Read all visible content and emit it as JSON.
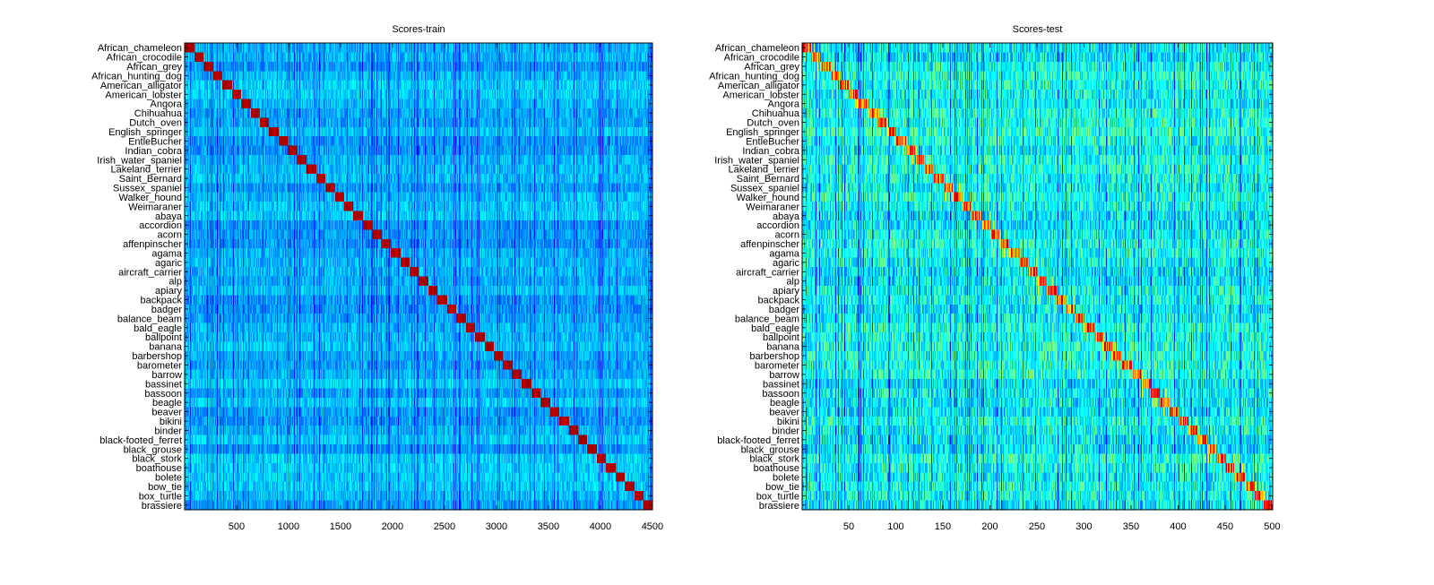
{
  "chart_data": [
    {
      "type": "heatmap",
      "title": "Scores-train",
      "xlabel": "",
      "ylabel": "",
      "xlim": [
        1,
        4500
      ],
      "x_ticks": [
        500,
        1000,
        1500,
        2000,
        2500,
        3000,
        3500,
        4000,
        4500
      ],
      "colormap": "jet",
      "pattern": "Each class has 90 training samples; score is maximal (red) for the sample's own class, producing a clean diagonal of red blocks; other scores are low (cyan/blue).",
      "columns_per_class": 90,
      "rows": [
        "African_chameleon",
        "African_crocodile",
        "African_grey",
        "African_hunting_dog",
        "American_alligator",
        "American_lobster",
        "Angora",
        "Chihuahua",
        "Dutch_oven",
        "English_springer",
        "EntleBucher",
        "Indian_cobra",
        "Irish_water_spaniel",
        "Lakeland_terrier",
        "Saint_Bernard",
        "Sussex_spaniel",
        "Walker_hound",
        "Weimaraner",
        "abaya",
        "accordion",
        "acorn",
        "affenpinscher",
        "agama",
        "agaric",
        "aircraft_carrier",
        "alp",
        "apiary",
        "backpack",
        "badger",
        "balance_beam",
        "bald_eagle",
        "ballpoint",
        "banana",
        "barbershop",
        "barometer",
        "barrow",
        "bassinet",
        "bassoon",
        "beagle",
        "beaver",
        "bikini",
        "binder",
        "black-footed_ferret",
        "black_grouse",
        "black_stork",
        "boathouse",
        "bolete",
        "bow_tie",
        "box_turtle",
        "brassiere"
      ]
    },
    {
      "type": "heatmap",
      "title": "Scores-test",
      "xlabel": "",
      "ylabel": "",
      "xlim": [
        1,
        500
      ],
      "x_ticks": [
        50,
        100,
        150,
        200,
        250,
        300,
        350,
        400,
        450,
        500
      ],
      "colormap": "jet",
      "pattern": "Each class has 10 test samples; a noisier diagonal with yellow/orange/red peaks near each class's own columns; off-diagonal scores are mostly cyan/green.",
      "columns_per_class": 10,
      "rows": [
        "African_chameleon",
        "African_crocodile",
        "African_grey",
        "African_hunting_dog",
        "American_alligator",
        "American_lobster",
        "Angora",
        "Chihuahua",
        "Dutch_oven",
        "English_springer",
        "EntleBucher",
        "Indian_cobra",
        "Irish_water_spaniel",
        "Lakeland_terrier",
        "Saint_Bernard",
        "Sussex_spaniel",
        "Walker_hound",
        "Weimaraner",
        "abaya",
        "accordion",
        "acorn",
        "affenpinscher",
        "agama",
        "agaric",
        "aircraft_carrier",
        "alp",
        "apiary",
        "backpack",
        "badger",
        "balance_beam",
        "bald_eagle",
        "ballpoint",
        "banana",
        "barbershop",
        "barometer",
        "barrow",
        "bassinet",
        "bassoon",
        "beagle",
        "beaver",
        "bikini",
        "binder",
        "black-footed_ferret",
        "black_grouse",
        "black_stork",
        "boathouse",
        "bolete",
        "bow_tie",
        "box_turtle",
        "brassiere"
      ]
    }
  ]
}
